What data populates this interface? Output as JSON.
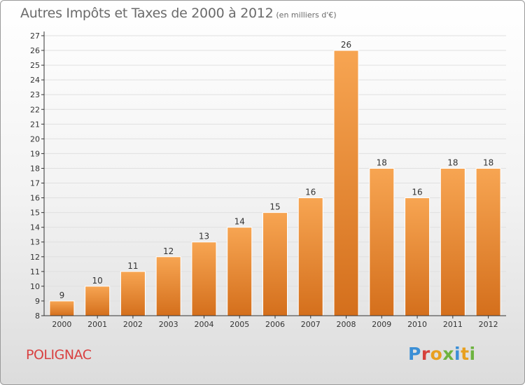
{
  "header": {
    "title": "Autres Impôts et Taxes de 2000 à 2012",
    "unit": "(en milliers d'€)"
  },
  "footer": {
    "commune": "POLIGNAC",
    "logo_letters": [
      "P",
      "r",
      "o",
      "x",
      "i",
      "t",
      "i"
    ]
  },
  "colors": {
    "bar_top": "#f7a552",
    "bar_bottom": "#d46f1c",
    "commune": "#d94040",
    "axis": "#333333",
    "grid": "#e0e0e0"
  },
  "chart_data": {
    "type": "bar",
    "title": "Autres Impôts et Taxes de 2000 à 2012",
    "xlabel": "",
    "ylabel": "",
    "categories": [
      "2000",
      "2001",
      "2002",
      "2003",
      "2004",
      "2005",
      "2006",
      "2007",
      "2008",
      "2009",
      "2010",
      "2011",
      "2012"
    ],
    "values": [
      9,
      10,
      11,
      12,
      13,
      14,
      15,
      16,
      26,
      18,
      16,
      18,
      18
    ],
    "ylim": [
      8,
      27
    ],
    "yticks": [
      8,
      9,
      10,
      11,
      12,
      13,
      14,
      15,
      16,
      17,
      18,
      19,
      20,
      21,
      22,
      23,
      24,
      25,
      26,
      27
    ],
    "grid": true,
    "data_labels": true
  }
}
